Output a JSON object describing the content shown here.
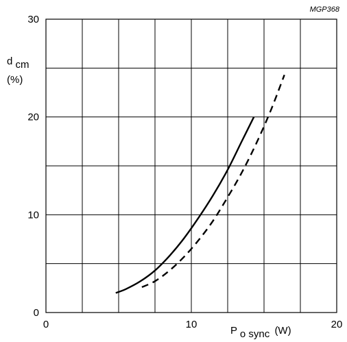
{
  "chart_data": {
    "type": "line",
    "code": "MGP368",
    "ylabel": {
      "main": "d",
      "sub": "cm",
      "unit": "(%)"
    },
    "xlabel": {
      "main": "P",
      "sub": "o sync",
      "unit": "(W)"
    },
    "xlim": [
      0,
      20
    ],
    "ylim": [
      0,
      30
    ],
    "x_ticks": [
      0,
      10,
      20
    ],
    "y_ticks": [
      0,
      10,
      20,
      30
    ],
    "x_grid_step": 2.5,
    "y_grid_step": 5,
    "grid": true,
    "series": [
      {
        "style": "solid",
        "x": [
          4.8,
          5.5,
          6.5,
          7.5,
          8.5,
          9.5,
          10.5,
          11.5,
          12.5,
          13.5,
          14.3
        ],
        "y": [
          2.0,
          2.4,
          3.2,
          4.3,
          5.8,
          7.6,
          9.7,
          12.0,
          14.6,
          17.6,
          20.0
        ]
      },
      {
        "style": "dashed",
        "x": [
          6.6,
          7.5,
          8.5,
          9.5,
          10.5,
          11.5,
          12.5,
          13.5,
          14.5,
          15.5,
          16.4
        ],
        "y": [
          2.6,
          3.2,
          4.3,
          5.7,
          7.4,
          9.4,
          11.8,
          14.4,
          17.4,
          20.8,
          24.3
        ]
      }
    ]
  }
}
